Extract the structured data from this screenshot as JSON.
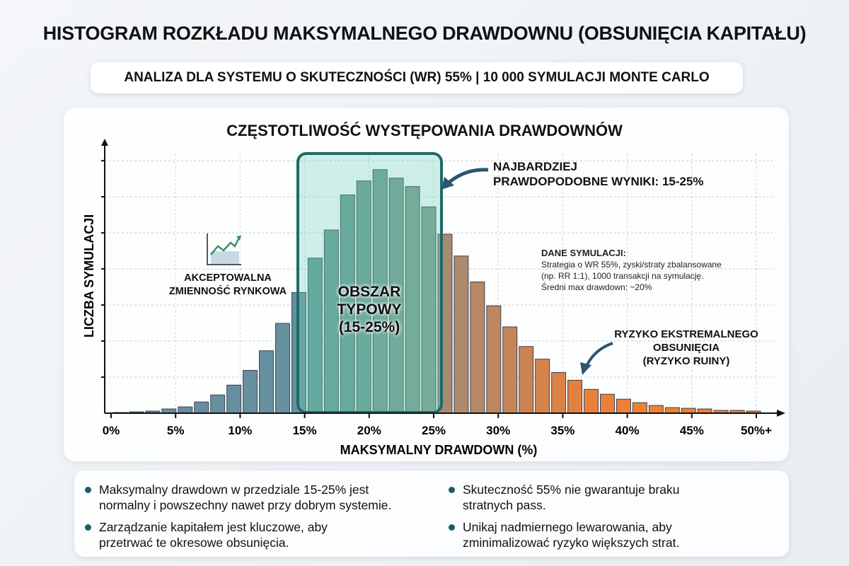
{
  "header": {
    "title": "HISTOGRAM ROZKŁADU MAKSYMALNEGO DRAWDOWNU (OBSUNIĘCIA KAPITAŁU)",
    "subtitle": "ANALIZA DLA SYSTEMU O SKUTECZNOŚCI (WR) 55% | 10 000 SYMULACJI MONTE CARLO"
  },
  "chart_data": {
    "type": "bar",
    "title": "CZĘSTOTLIWOŚĆ WYSTĘPOWANIA DRAWDOWNÓW",
    "xlabel": "MAKSYMALNY DRAWDOWN (%)",
    "ylabel": "LICZBA SYMULACJI",
    "x_ticks": [
      "0%",
      "5%",
      "10%",
      "15%",
      "20%",
      "25%",
      "30%",
      "35%",
      "40%",
      "45%",
      "50%+"
    ],
    "xlim": [
      0,
      50
    ],
    "bin_width": 1.25,
    "ylim": [
      0,
      370
    ],
    "grid": true,
    "values": [
      1,
      2,
      3,
      6,
      9,
      16,
      26,
      40,
      61,
      89,
      128,
      172,
      221,
      261,
      311,
      331,
      347,
      335,
      323,
      294,
      255,
      224,
      187,
      153,
      123,
      95,
      77,
      58,
      47,
      34,
      27,
      20,
      15,
      11,
      8,
      7,
      6,
      4,
      4,
      3
    ],
    "highlight_range": [
      15,
      25
    ],
    "colors": {
      "low": "#6a8aa6",
      "mid": "#5e9893",
      "turn": "#a88a72",
      "high": "#ee7f36",
      "box_border": "#1f6b66"
    }
  },
  "annotations": {
    "typical_area": "OBSZAR TYPOWY (15-25%)",
    "typical_line1": "OBSZAR",
    "typical_line2": "TYPOWY",
    "typical_line3": "(15-25%)",
    "most_likely_1": "NAJBARDZIEJ",
    "most_likely_2": "PRAWDOPODOBNE WYNIKI: 15-25%",
    "acceptable_1": "AKCEPTOWALNA",
    "acceptable_2": "ZMIENNOŚĆ RYNKOWA",
    "sim_title": "DANE SYMULACJI:",
    "sim_1": "Strategia o WR 55%, zyski/straty zbalansowane",
    "sim_2": "(np. RR 1:1), 1000 transakcji na symulację.",
    "sim_3": "Średni max drawdown: ~20%",
    "risk_1": "RYZYKO EKSTREMALNEGO",
    "risk_2": "OBSUNIĘCIA",
    "risk_3": "(RYZYKO RUINY)"
  },
  "bullets": [
    {
      "l1": "Maksymalny drawdown w przedziale 15-25% jest",
      "l2": "normalny i powszechny nawet przy dobrym systemie."
    },
    {
      "l1": "Skuteczność 55% nie gwarantuje braku",
      "l2": "stratnych pass."
    },
    {
      "l1": "Zarządzanie kapitałem jest kluczowe, aby",
      "l2": "przetrwać te okresowe obsunięcia."
    },
    {
      "l1": "Unikaj nadmiernego lewarowania, aby",
      "l2": "zminimalizować ryzyko większych strat."
    }
  ]
}
